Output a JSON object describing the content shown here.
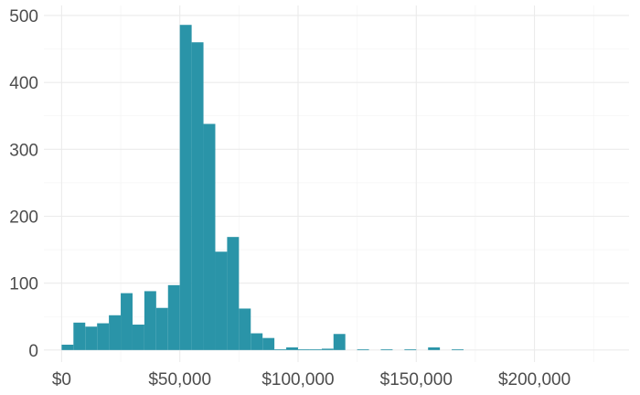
{
  "chart_data": {
    "type": "bar",
    "subtype": "histogram",
    "bar_color": "#2a94a8",
    "grid": true,
    "x_range": [
      -7500,
      240000
    ],
    "ylim": [
      -18,
      515
    ],
    "x_ticks": [
      0,
      50000,
      100000,
      150000,
      200000
    ],
    "x_tick_labels": [
      "$0",
      "$50,000",
      "$100,000",
      "$150,000",
      "$200,000"
    ],
    "y_ticks": [
      0,
      100,
      200,
      300,
      400,
      500
    ],
    "y_tick_labels": [
      "0",
      "100",
      "200",
      "300",
      "400",
      "500"
    ],
    "bin_width": 5000,
    "bins": [
      {
        "x0": 0,
        "x1": 5000,
        "count": 8
      },
      {
        "x0": 5000,
        "x1": 10000,
        "count": 41
      },
      {
        "x0": 10000,
        "x1": 15000,
        "count": 35
      },
      {
        "x0": 15000,
        "x1": 20000,
        "count": 40
      },
      {
        "x0": 20000,
        "x1": 25000,
        "count": 52
      },
      {
        "x0": 25000,
        "x1": 30000,
        "count": 85
      },
      {
        "x0": 30000,
        "x1": 35000,
        "count": 38
      },
      {
        "x0": 35000,
        "x1": 40000,
        "count": 88
      },
      {
        "x0": 40000,
        "x1": 45000,
        "count": 63
      },
      {
        "x0": 45000,
        "x1": 50000,
        "count": 97
      },
      {
        "x0": 50000,
        "x1": 55000,
        "count": 486
      },
      {
        "x0": 55000,
        "x1": 60000,
        "count": 460
      },
      {
        "x0": 60000,
        "x1": 65000,
        "count": 338
      },
      {
        "x0": 65000,
        "x1": 70000,
        "count": 147
      },
      {
        "x0": 70000,
        "x1": 75000,
        "count": 169
      },
      {
        "x0": 75000,
        "x1": 80000,
        "count": 62
      },
      {
        "x0": 80000,
        "x1": 85000,
        "count": 25
      },
      {
        "x0": 85000,
        "x1": 90000,
        "count": 18
      },
      {
        "x0": 90000,
        "x1": 95000,
        "count": 1
      },
      {
        "x0": 95000,
        "x1": 100000,
        "count": 4
      },
      {
        "x0": 100000,
        "x1": 105000,
        "count": 1
      },
      {
        "x0": 105000,
        "x1": 110000,
        "count": 1
      },
      {
        "x0": 110000,
        "x1": 115000,
        "count": 2
      },
      {
        "x0": 115000,
        "x1": 120000,
        "count": 24
      },
      {
        "x0": 120000,
        "x1": 125000,
        "count": 0
      },
      {
        "x0": 125000,
        "x1": 130000,
        "count": 1
      },
      {
        "x0": 130000,
        "x1": 135000,
        "count": 0
      },
      {
        "x0": 135000,
        "x1": 140000,
        "count": 1
      },
      {
        "x0": 140000,
        "x1": 145000,
        "count": 0
      },
      {
        "x0": 145000,
        "x1": 150000,
        "count": 1
      },
      {
        "x0": 150000,
        "x1": 155000,
        "count": 0
      },
      {
        "x0": 155000,
        "x1": 160000,
        "count": 4
      },
      {
        "x0": 160000,
        "x1": 165000,
        "count": 0
      },
      {
        "x0": 165000,
        "x1": 170000,
        "count": 1
      }
    ]
  }
}
